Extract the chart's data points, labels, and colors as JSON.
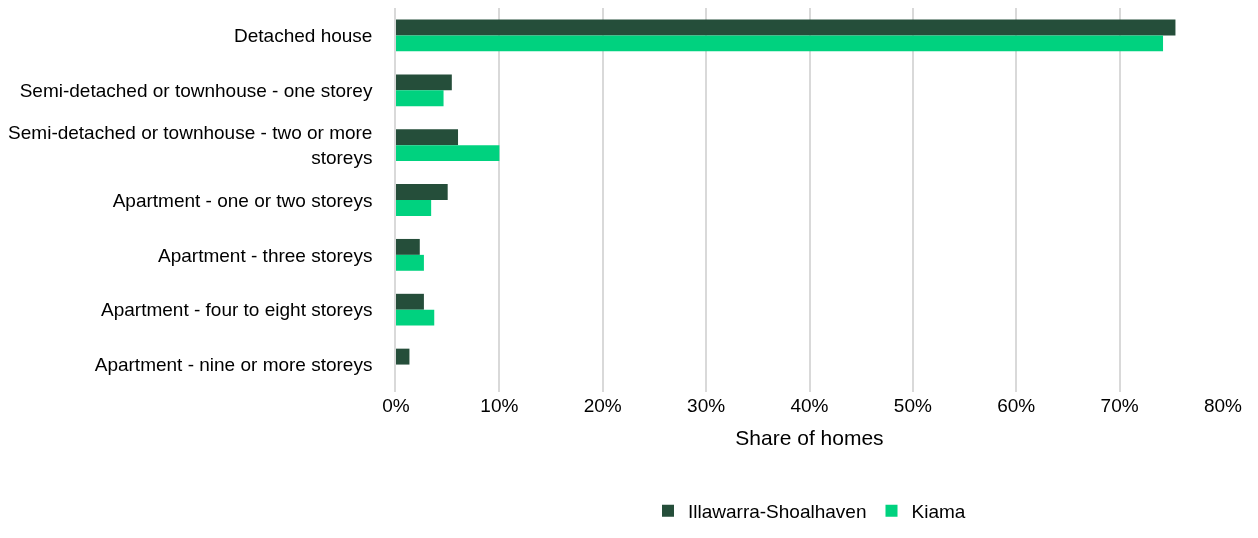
{
  "chart_data": {
    "type": "bar",
    "orientation": "horizontal",
    "xlabel": "Share of homes",
    "categories": [
      "Detached house",
      "Semi-detached or townhouse - one storey",
      "Semi-detached or townhouse - two or more storeys",
      "Apartment - one or two storeys",
      "Apartment - three storeys",
      "Apartment - four to eight storeys",
      "Apartment - nine or more storeys"
    ],
    "series": [
      {
        "name": "Illawarra-Shoalhaven",
        "color": "#254e3a",
        "values": [
          75.4,
          5.4,
          6.0,
          5.0,
          2.3,
          2.7,
          1.3
        ]
      },
      {
        "name": "Kiama",
        "color": "#00d27f",
        "values": [
          74.2,
          4.6,
          10.0,
          3.4,
          2.7,
          3.7,
          0
        ]
      }
    ],
    "xlim": [
      0,
      80
    ],
    "xticks": [
      {
        "value": 0,
        "label": "0%"
      },
      {
        "value": 10,
        "label": "10%"
      },
      {
        "value": 20,
        "label": "20%"
      },
      {
        "value": 30,
        "label": "30%"
      },
      {
        "value": 40,
        "label": "40%"
      },
      {
        "value": 50,
        "label": "50%"
      },
      {
        "value": 60,
        "label": "60%"
      },
      {
        "value": 70,
        "label": "70%"
      },
      {
        "value": 80,
        "label": "80%"
      }
    ],
    "grid": "x",
    "legend": "bottom"
  }
}
